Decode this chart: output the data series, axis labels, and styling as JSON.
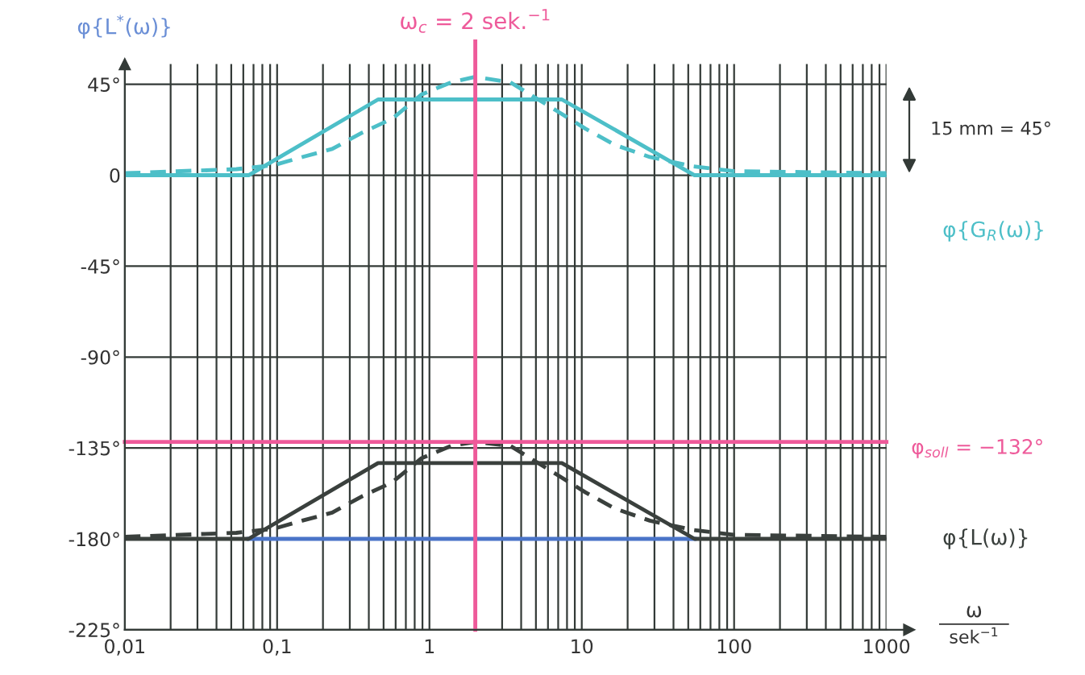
{
  "chart_data": {
    "type": "line",
    "ylabel": "φ{L$^{*}$(ω)}",
    "xlabel": "ω\nsek$^{−1}$",
    "log": "x",
    "xlim": [
      0.01,
      1000
    ],
    "ylim": [
      -225,
      55
    ],
    "grid": true,
    "xticks": [
      {
        "value": 0.01,
        "label": "0,01"
      },
      {
        "value": 0.1,
        "label": "0,1"
      },
      1,
      10,
      100,
      1000
    ],
    "yticks": [
      {
        "value": 45,
        "label": "45°"
      },
      0,
      {
        "value": -45,
        "label": "-45°"
      },
      {
        "value": -90,
        "label": "-90°"
      },
      {
        "value": -135,
        "label": "-135°"
      },
      {
        "value": -180,
        "label": "-180°"
      },
      {
        "value": -225,
        "label": "-225°"
      }
    ],
    "series": [
      {
        "color": "#4a74c8",
        "line_style": "solid",
        "x": [
          0.065,
          55
        ],
        "values": [
          -180,
          -180
        ]
      },
      {
        "name": "φ{G$_{R}$(ω)}",
        "color": "#4dbfc8",
        "line_style": "solid",
        "x": [
          0.01,
          0.065,
          0.46,
          7.4,
          55,
          1000
        ],
        "values": [
          0,
          0,
          37.5,
          37.5,
          0,
          0
        ]
      },
      {
        "color": "#4dbfc8",
        "line_style": "dashed",
        "x": [
          0.01,
          0.054,
          0.095,
          0.146,
          0.23,
          0.36,
          0.57,
          0.89,
          1.39,
          2,
          3.4,
          6.8,
          10.6,
          16.5,
          28,
          54,
          99,
          1000
        ],
        "values": [
          1,
          3,
          5,
          9,
          13,
          21,
          28,
          40,
          46,
          48.7,
          46,
          32,
          23,
          15,
          9,
          4.4,
          2,
          1
        ]
      },
      {
        "name": "φ{L(ω)}",
        "color": "#3a403d",
        "line_style": "solid",
        "x": [
          0.01,
          0.065,
          0.46,
          7.4,
          55,
          1000
        ],
        "values": [
          -180,
          -180,
          -142.5,
          -142.5,
          -180,
          -180
        ]
      },
      {
        "color": "#3a403d",
        "line_style": "dashed",
        "x": [
          0.01,
          0.054,
          0.095,
          0.146,
          0.23,
          0.36,
          0.57,
          0.89,
          1.39,
          2,
          3.4,
          6.8,
          10.6,
          16.5,
          28,
          54,
          99,
          1000
        ],
        "values": [
          -179,
          -177,
          -175,
          -171,
          -167,
          -159,
          -152,
          -140,
          -134,
          -132,
          -134,
          -148,
          -157,
          -165,
          -171,
          -175.6,
          -178,
          -179
        ]
      }
    ],
    "ref_lines": [
      {
        "axis": "x",
        "value": 2,
        "label": "ω$_{c}$ = 2 sek.$^{−1}$",
        "color": "#ee5a9a"
      },
      {
        "axis": "y",
        "value": -132,
        "label": "φ$_{soll}$ = −132°",
        "color": "#ee5a9a"
      }
    ],
    "annotations": [
      "15 mm = 45°"
    ]
  }
}
